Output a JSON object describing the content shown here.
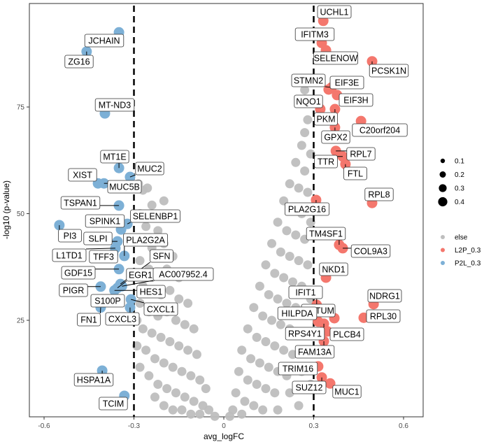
{
  "chart_data": {
    "type": "scatter",
    "title": "",
    "xlabel": "avg_logFC",
    "ylabel": "-log10 (p-value)",
    "xlim": [
      -0.645,
      0.665
    ],
    "ylim": [
      0,
      100
    ],
    "x_ticks": [
      -0.6,
      -0.3,
      0,
      0.3,
      0.6
    ],
    "y_ticks": [
      25,
      50,
      75
    ],
    "x_tick_labels": [
      "-0.6",
      "-0.3",
      "0",
      "0.3",
      "0.6"
    ],
    "y_tick_labels": [
      "25",
      "50",
      "75"
    ],
    "thresholds": [
      -0.3,
      0.3
    ],
    "grid": false,
    "legend_position": "right",
    "size_legend": {
      "values": [
        0.1,
        0.2,
        0.3,
        0.4
      ],
      "labels": [
        "0.1",
        "0.2",
        "0.3",
        "0.4"
      ]
    },
    "color_legend": [
      {
        "name": "else",
        "color": "#BEBEBE"
      },
      {
        "name": "L2P_0.3",
        "color": "#F4776D"
      },
      {
        "name": "P2L_0.3",
        "color": "#7DB0D6"
      }
    ],
    "labeled_points": [
      {
        "label": "JCHAIN",
        "x": -0.35,
        "y": 92.5,
        "group": "P2L_0.3"
      },
      {
        "label": "ZG16",
        "x": -0.458,
        "y": 88,
        "group": "P2L_0.3"
      },
      {
        "label": "MT-ND3",
        "x": -0.397,
        "y": 73.5,
        "group": "P2L_0.3"
      },
      {
        "label": "MT1E",
        "x": -0.35,
        "y": 60.7,
        "group": "P2L_0.3"
      },
      {
        "label": "MUC2",
        "x": -0.313,
        "y": 58.6,
        "group": "P2L_0.3"
      },
      {
        "label": "XIST",
        "x": -0.42,
        "y": 57.1,
        "group": "P2L_0.3"
      },
      {
        "label": "MUC5B",
        "x": -0.4,
        "y": 57.1,
        "group": "P2L_0.3"
      },
      {
        "label": "TSPAN1",
        "x": -0.35,
        "y": 51.9,
        "group": "P2L_0.3"
      },
      {
        "label": "SPINK1",
        "x": -0.343,
        "y": 46.3,
        "group": "P2L_0.3"
      },
      {
        "label": "SELENBP1",
        "x": -0.322,
        "y": 47.6,
        "group": "P2L_0.3"
      },
      {
        "label": "PI3",
        "x": -0.549,
        "y": 47.3,
        "group": "P2L_0.3"
      },
      {
        "label": "SLPI",
        "x": -0.355,
        "y": 43.5,
        "group": "P2L_0.3"
      },
      {
        "label": "L1TD1",
        "x": -0.362,
        "y": 41.9,
        "group": "P2L_0.3"
      },
      {
        "label": "TFF3",
        "x": -0.37,
        "y": 40.5,
        "group": "P2L_0.3"
      },
      {
        "label": "PLA2G2A",
        "x": -0.332,
        "y": 40.1,
        "group": "P2L_0.3"
      },
      {
        "label": "GDF15",
        "x": -0.35,
        "y": 37,
        "group": "P2L_0.3"
      },
      {
        "label": "SFN",
        "x": -0.345,
        "y": 33.5,
        "group": "P2L_0.3"
      },
      {
        "label": "EGR1",
        "x": -0.355,
        "y": 32.6,
        "group": "P2L_0.3"
      },
      {
        "label": "AC007952.4",
        "x": -0.34,
        "y": 33.0,
        "group": "P2L_0.3"
      },
      {
        "label": "PIGR",
        "x": -0.411,
        "y": 32.9,
        "group": "P2L_0.3"
      },
      {
        "label": "HES1",
        "x": -0.365,
        "y": 32.0,
        "group": "P2L_0.3"
      },
      {
        "label": "S100P",
        "x": -0.369,
        "y": 29.6,
        "group": "P2L_0.3"
      },
      {
        "label": "CXCL1",
        "x": -0.31,
        "y": 29.9,
        "group": "P2L_0.3"
      },
      {
        "label": "FN1",
        "x": -0.411,
        "y": 28,
        "group": "P2L_0.3"
      },
      {
        "label": "CXCL3",
        "x": -0.313,
        "y": 28,
        "group": "P2L_0.3"
      },
      {
        "label": "HSPA1A",
        "x": -0.406,
        "y": 13.2,
        "group": "P2L_0.3"
      },
      {
        "label": "TCIM",
        "x": -0.332,
        "y": 7.3,
        "group": "P2L_0.3"
      },
      {
        "label": "UCHL1",
        "x": 0.332,
        "y": 95.2,
        "group": "L2P_0.3"
      },
      {
        "label": "IFITM3",
        "x": 0.327,
        "y": 90,
        "group": "L2P_0.3"
      },
      {
        "label": "SELENOW",
        "x": 0.341,
        "y": 88.3,
        "group": "L2P_0.3"
      },
      {
        "label": "PCSK1N",
        "x": 0.495,
        "y": 85.7,
        "group": "L2P_0.3"
      },
      {
        "label": "STMN2",
        "x": 0.36,
        "y": 79.6,
        "group": "L2P_0.3"
      },
      {
        "label": "EIF3E",
        "x": 0.35,
        "y": 79.1,
        "group": "L2P_0.3"
      },
      {
        "label": "EIF3H",
        "x": 0.378,
        "y": 77.8,
        "group": "L2P_0.3"
      },
      {
        "label": "NQO1",
        "x": 0.322,
        "y": 74.5,
        "group": "L2P_0.3"
      },
      {
        "label": "PKM",
        "x": 0.371,
        "y": 74.5,
        "group": "L2P_0.3"
      },
      {
        "label": "C20orf204",
        "x": 0.458,
        "y": 71.7,
        "group": "L2P_0.3"
      },
      {
        "label": "GPX2",
        "x": 0.371,
        "y": 70.2,
        "group": "L2P_0.3"
      },
      {
        "label": "RPL7",
        "x": 0.374,
        "y": 64.7,
        "group": "L2P_0.3"
      },
      {
        "label": "TTR",
        "x": 0.397,
        "y": 63.4,
        "group": "L2P_0.3"
      },
      {
        "label": "FTL",
        "x": 0.406,
        "y": 61.6,
        "group": "L2P_0.3"
      },
      {
        "label": "RPL8",
        "x": 0.495,
        "y": 52.5,
        "group": "L2P_0.3"
      },
      {
        "label": "PLA2G16",
        "x": 0.308,
        "y": 53.2,
        "group": "L2P_0.3"
      },
      {
        "label": "TM4SF1",
        "x": 0.385,
        "y": 42.7,
        "group": "L2P_0.3"
      },
      {
        "label": "COL9A3",
        "x": 0.397,
        "y": 41.9,
        "group": "L2P_0.3"
      },
      {
        "label": "NKD1",
        "x": 0.341,
        "y": 35,
        "group": "L2P_0.3"
      },
      {
        "label": "IFIT1",
        "x": 0.31,
        "y": 28.6,
        "group": "L2P_0.3"
      },
      {
        "label": "NDRG1",
        "x": 0.5,
        "y": 28.8,
        "group": "L2P_0.3"
      },
      {
        "label": "NOTUM",
        "x": 0.369,
        "y": 25.5,
        "group": "L2P_0.3"
      },
      {
        "label": "RPL30",
        "x": 0.467,
        "y": 25.6,
        "group": "L2P_0.3"
      },
      {
        "label": "HILPDA",
        "x": 0.315,
        "y": 24.7,
        "group": "L2P_0.3"
      },
      {
        "label": "RPS4Y1",
        "x": 0.334,
        "y": 24.2,
        "group": "L2P_0.3"
      },
      {
        "label": "PLCB4",
        "x": 0.346,
        "y": 22.4,
        "group": "L2P_0.3"
      },
      {
        "label": "FAM13A",
        "x": 0.334,
        "y": 20.1,
        "group": "L2P_0.3"
      },
      {
        "label": "TRIM16",
        "x": 0.315,
        "y": 14.2,
        "group": "L2P_0.3"
      },
      {
        "label": "SUZ12",
        "x": 0.327,
        "y": 11.6,
        "group": "L2P_0.3"
      },
      {
        "label": "MUC1",
        "x": 0.355,
        "y": 10.2,
        "group": "L2P_0.3"
      }
    ],
    "other_points": [
      [
        -0.285,
        57
      ],
      [
        -0.27,
        55.5
      ],
      [
        -0.255,
        56
      ],
      [
        -0.24,
        52
      ],
      [
        -0.2,
        53
      ],
      [
        -0.28,
        50
      ],
      [
        -0.26,
        47
      ],
      [
        -0.22,
        46
      ],
      [
        -0.27,
        44
      ],
      [
        -0.24,
        42
      ],
      [
        -0.2,
        43
      ],
      [
        -0.17,
        40
      ],
      [
        -0.28,
        39
      ],
      [
        -0.25,
        37
      ],
      [
        -0.22,
        36
      ],
      [
        -0.19,
        37
      ],
      [
        -0.15,
        35
      ],
      [
        -0.27,
        33
      ],
      [
        -0.24,
        32
      ],
      [
        -0.21,
        31
      ],
      [
        -0.18,
        32
      ],
      [
        -0.15,
        30
      ],
      [
        -0.12,
        29
      ],
      [
        -0.28,
        29
      ],
      [
        -0.25,
        27
      ],
      [
        -0.22,
        26
      ],
      [
        -0.19,
        27
      ],
      [
        -0.16,
        25
      ],
      [
        -0.13,
        24
      ],
      [
        -0.1,
        23
      ],
      [
        -0.27,
        23
      ],
      [
        -0.24,
        22
      ],
      [
        -0.21,
        21
      ],
      [
        -0.18,
        20
      ],
      [
        -0.15,
        19
      ],
      [
        -0.12,
        18
      ],
      [
        -0.09,
        17
      ],
      [
        -0.26,
        18
      ],
      [
        -0.23,
        16
      ],
      [
        -0.2,
        15
      ],
      [
        -0.17,
        14
      ],
      [
        -0.14,
        13
      ],
      [
        -0.11,
        12
      ],
      [
        -0.08,
        11
      ],
      [
        -0.06,
        9
      ],
      [
        -0.25,
        12
      ],
      [
        -0.22,
        10
      ],
      [
        -0.19,
        9
      ],
      [
        -0.16,
        8
      ],
      [
        -0.13,
        7
      ],
      [
        -0.1,
        6
      ],
      [
        -0.07,
        5
      ],
      [
        -0.05,
        4
      ],
      [
        -0.2,
        5
      ],
      [
        -0.17,
        4
      ],
      [
        -0.14,
        4
      ],
      [
        -0.11,
        3
      ],
      [
        -0.08,
        3
      ],
      [
        -0.03,
        2.5
      ],
      [
        -0.23,
        7
      ],
      [
        -0.29,
        25
      ],
      [
        -0.29,
        19
      ],
      [
        -0.28,
        14
      ],
      [
        0.27,
        79
      ],
      [
        0.28,
        72
      ],
      [
        0.27,
        69
      ],
      [
        0.26,
        66
      ],
      [
        0.29,
        64
      ],
      [
        0.24,
        62
      ],
      [
        0.27,
        60
      ],
      [
        0.22,
        57
      ],
      [
        0.25,
        56
      ],
      [
        0.28,
        55
      ],
      [
        0.2,
        53
      ],
      [
        0.23,
        51
      ],
      [
        0.26,
        50
      ],
      [
        0.29,
        48
      ],
      [
        0.18,
        48
      ],
      [
        0.21,
        46
      ],
      [
        0.24,
        45
      ],
      [
        0.27,
        44
      ],
      [
        0.16,
        43
      ],
      [
        0.19,
        41
      ],
      [
        0.22,
        40
      ],
      [
        0.25,
        39
      ],
      [
        0.28,
        38
      ],
      [
        0.14,
        38
      ],
      [
        0.17,
        36
      ],
      [
        0.2,
        35
      ],
      [
        0.23,
        34
      ],
      [
        0.26,
        33
      ],
      [
        0.12,
        33
      ],
      [
        0.15,
        31
      ],
      [
        0.18,
        30
      ],
      [
        0.21,
        29
      ],
      [
        0.24,
        28
      ],
      [
        0.27,
        27
      ],
      [
        0.1,
        28
      ],
      [
        0.13,
        26
      ],
      [
        0.16,
        25
      ],
      [
        0.19,
        24
      ],
      [
        0.22,
        23
      ],
      [
        0.25,
        22
      ],
      [
        0.08,
        23
      ],
      [
        0.11,
        21
      ],
      [
        0.14,
        20
      ],
      [
        0.17,
        19
      ],
      [
        0.2,
        18
      ],
      [
        0.23,
        17
      ],
      [
        0.28,
        18
      ],
      [
        0.06,
        18
      ],
      [
        0.09,
        16
      ],
      [
        0.12,
        15
      ],
      [
        0.15,
        14
      ],
      [
        0.18,
        13
      ],
      [
        0.21,
        12
      ],
      [
        0.26,
        13
      ],
      [
        0.05,
        13
      ],
      [
        0.08,
        11
      ],
      [
        0.11,
        10
      ],
      [
        0.14,
        9
      ],
      [
        0.17,
        8
      ],
      [
        0.22,
        8
      ],
      [
        0.04,
        8
      ],
      [
        0.07,
        6
      ],
      [
        0.1,
        5
      ],
      [
        0.13,
        4
      ],
      [
        0.18,
        4
      ],
      [
        0.25,
        5
      ],
      [
        0.03,
        4
      ],
      [
        0.06,
        3
      ],
      [
        0.02,
        2.5
      ],
      [
        0.29,
        10
      ],
      [
        0.29,
        30
      ],
      [
        0.29,
        22
      ]
    ]
  }
}
